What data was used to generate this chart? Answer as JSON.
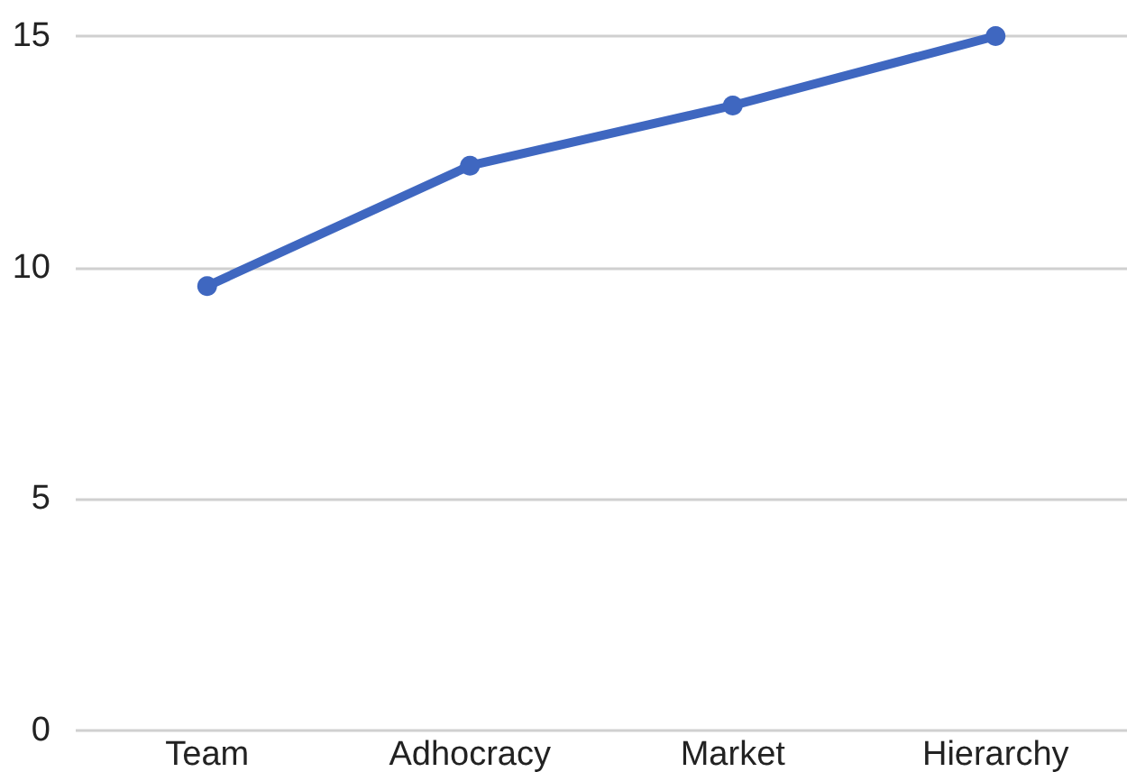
{
  "chart_data": {
    "type": "line",
    "categories": [
      "Team",
      "Adhocracy",
      "Market",
      "Hierarchy"
    ],
    "series": [
      {
        "color": "#3f67c0",
        "values": [
          9.6,
          12.2,
          13.5,
          15.0
        ]
      }
    ],
    "ylim": [
      0,
      15
    ],
    "yticks": [
      0,
      5,
      10,
      15
    ],
    "grid": "y",
    "marker": "circle",
    "line_style": "solid"
  }
}
